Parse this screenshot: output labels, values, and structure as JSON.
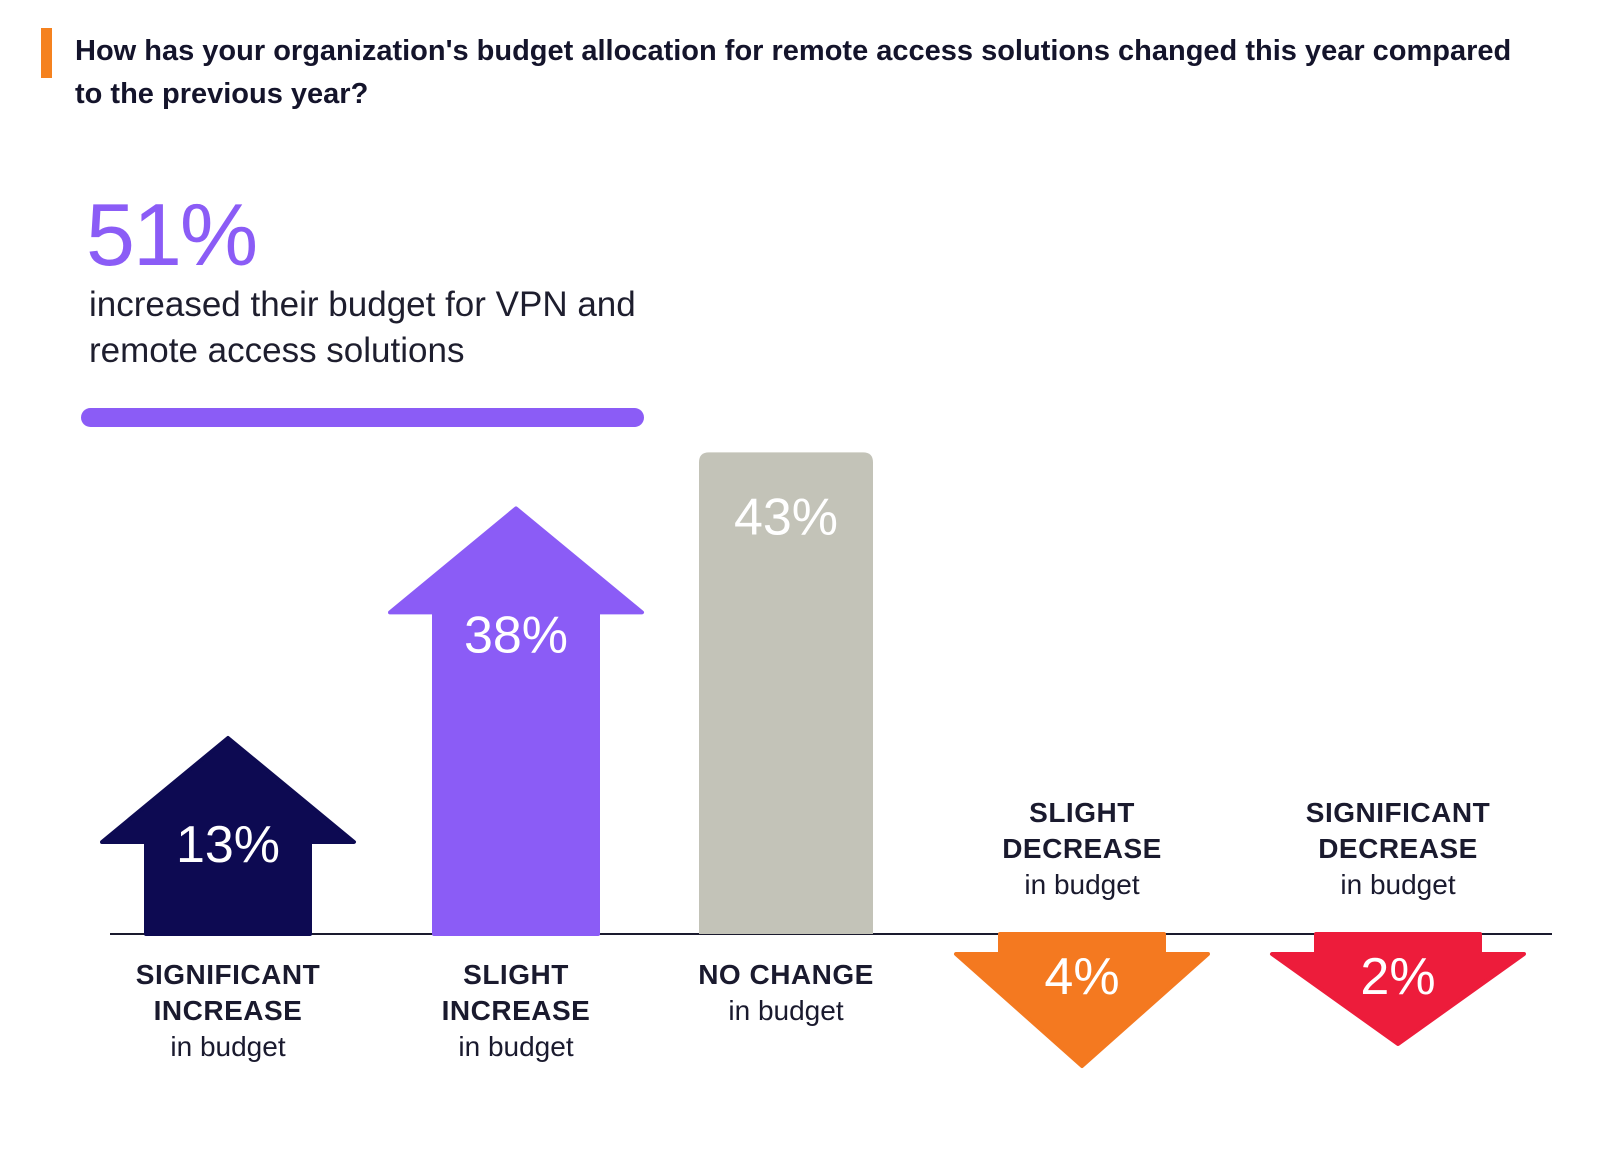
{
  "question": "How has your organization's budget allocation for remote access solutions changed this year compared to the previous year?",
  "callout": {
    "value": "51%",
    "caption": "increased their budget for VPN and remote access solutions"
  },
  "colors": {
    "accent_bar": "#f5821f",
    "callout": "#8b5cf6",
    "bracket": "#8b5cf6",
    "axis": "#1a1a2e"
  },
  "chart_data": {
    "type": "bar",
    "categories": [
      "SIGNIFICANT INCREASE in budget",
      "SLIGHT INCREASE in budget",
      "NO CHANGE in budget",
      "SLIGHT DECREASE in budget",
      "SIGNIFICANT DECREASE in budget"
    ],
    "values": [
      13,
      38,
      43,
      -4,
      -2
    ],
    "value_labels": [
      "13%",
      "38%",
      "43%",
      "4%",
      "2%"
    ],
    "bar_colors": [
      "#0d0a52",
      "#8b5cf6",
      "#c3c3b8",
      "#f47920",
      "#ed1c3b"
    ],
    "shapes": [
      "arrow-up",
      "arrow-up",
      "bar",
      "arrow-down",
      "arrow-down"
    ],
    "labels": [
      {
        "bold": "SIGNIFICANT INCREASE",
        "sub": "in budget"
      },
      {
        "bold": "SLIGHT INCREASE",
        "sub": "in budget"
      },
      {
        "bold": "NO CHANGE",
        "sub": "in budget"
      },
      {
        "bold": "SLIGHT DECREASE",
        "sub": "in budget"
      },
      {
        "bold": "SIGNIFICANT DECREASE",
        "sub": "in budget"
      }
    ],
    "bracket_covers": [
      "SIGNIFICANT INCREASE in budget",
      "SLIGHT INCREASE in budget"
    ],
    "title": "How has your organization's budget allocation for remote access solutions changed this year compared to the previous year?",
    "ylim": [
      -5,
      45
    ]
  }
}
